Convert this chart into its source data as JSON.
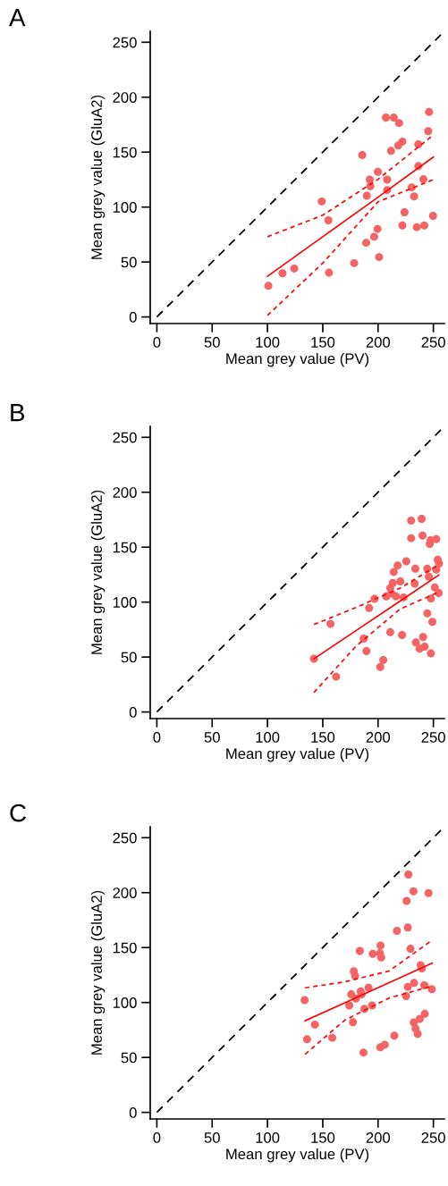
{
  "chart_data": [
    {
      "type": "scatter",
      "title": "A",
      "xlabel": "Mean grey value (PV)",
      "ylabel": "Mean grey value (GluA2)",
      "xlim": [
        -6,
        260
      ],
      "ylim": [
        -6,
        260
      ],
      "xticks": [
        0,
        50,
        100,
        150,
        200,
        250
      ],
      "yticks": [
        0,
        50,
        100,
        150,
        200,
        250
      ],
      "grid": false,
      "legend": false,
      "marker": "circle",
      "series": [
        {
          "type": "line",
          "color": "#000000",
          "line_style": "dashed",
          "marker": "none",
          "x": [
            0,
            260
          ],
          "values": [
            0,
            260
          ]
        },
        {
          "color": "#f46464",
          "x": [
            100.8,
            113.6,
            124.2,
            149.1,
            155.1,
            155.6,
            178.4,
            185.7,
            189.2,
            189.8,
            192.5,
            193.0,
            196.5,
            199.5,
            199.8,
            200.9,
            207.1,
            208.2,
            208.2,
            211.7,
            214.2,
            218.2,
            219.0,
            222.0,
            222.0,
            223.9,
            230.4,
            232.6,
            235.0,
            236.4,
            236.4,
            241.0,
            241.8,
            245.3,
            246.1,
            249.7
          ],
          "values": [
            28.3,
            39.8,
            44.1,
            105.1,
            88.0,
            40.3,
            49.0,
            147.3,
            67.5,
            110.3,
            125.0,
            119.0,
            73.0,
            80.1,
            132.1,
            54.5,
            181.4,
            125.0,
            115.5,
            151.1,
            181.4,
            156.0,
            176.5,
            159.6,
            83.3,
            95.3,
            117.9,
            109.7,
            81.7,
            157.1,
            137.3,
            125.3,
            83.3,
            169.1,
            186.5,
            92.0
          ]
        },
        {
          "type": "line",
          "color": "#ff0000",
          "line_style": "solid",
          "marker": "none",
          "x": [
            100,
            150,
            200,
            250
          ],
          "values": [
            37,
            73,
            109,
            145.5
          ]
        },
        {
          "type": "line",
          "color": "#ff0000",
          "line_style": "dotted",
          "marker": "none",
          "x": [
            100,
            150,
            200,
            250
          ],
          "values": [
            73,
            92.6,
            125.3,
            165.6
          ]
        },
        {
          "type": "line",
          "color": "#ff0000",
          "line_style": "dotted",
          "marker": "none",
          "x": [
            100,
            150,
            200,
            250
          ],
          "values": [
            1.4,
            49,
            104.8,
            125
          ]
        }
      ]
    },
    {
      "type": "scatter",
      "title": "B",
      "xlabel": "Mean grey value (PV)",
      "ylabel": "Mean grey value (GluA2)",
      "xlim": [
        -6,
        260
      ],
      "ylim": [
        -6,
        260
      ],
      "xticks": [
        0,
        50,
        100,
        150,
        200,
        250
      ],
      "yticks": [
        0,
        50,
        100,
        150,
        200,
        250
      ],
      "grid": false,
      "legend": false,
      "marker": "circle",
      "series": [
        {
          "type": "line",
          "color": "#000000",
          "line_style": "dashed",
          "marker": "none",
          "x": [
            0,
            260
          ],
          "values": [
            0,
            260
          ]
        },
        {
          "color": "#f46464",
          "x": [
            142.0,
            157.0,
            162.1,
            187.0,
            189.5,
            191.9,
            196.8,
            202.0,
            204.7,
            207.4,
            211.0,
            211.0,
            212.0,
            213.3,
            214.2,
            216.1,
            217.7,
            220.1,
            221.7,
            223.1,
            225.5,
            229.9,
            229.9,
            233.1,
            233.7,
            234.2,
            237.5,
            239.4,
            240.2,
            240.7,
            242.1,
            244.5,
            244.5,
            245.9,
            246.7,
            247.5,
            247.8,
            247.8,
            249.1,
            251.3,
            252.6,
            252.6,
            254.0,
            255.1,
            254.8
          ],
          "values": [
            48.4,
            80.2,
            32.1,
            66.8,
            55.4,
            94.6,
            103.0,
            41.0,
            47.3,
            105.2,
            72.6,
            112.8,
            107.9,
            117.4,
            127.4,
            105.2,
            133.4,
            118.8,
            70.1,
            104.3,
            137.2,
            174.2,
            158.2,
            116.8,
            130.4,
            63.3,
            57.6,
            175.8,
            160.6,
            68.2,
            59.5,
            89.7,
            130.4,
            123.1,
            153.0,
            156.3,
            103.3,
            53.3,
            82.1,
            113.3,
            157.3,
            129.6,
            138.6,
            135.1,
            108.2
          ]
        },
        {
          "type": "line",
          "color": "#ff0000",
          "line_style": "solid",
          "marker": "none",
          "x": [
            142,
            180,
            220,
            255
          ],
          "values": [
            48.4,
            74,
            101,
            124.7
          ]
        },
        {
          "type": "line",
          "color": "#ff0000",
          "line_style": "dotted",
          "marker": "none",
          "x": [
            142,
            180,
            220,
            255
          ],
          "values": [
            79.6,
            95.1,
            112.8,
            134
          ]
        },
        {
          "type": "line",
          "color": "#ff0000",
          "line_style": "dotted",
          "marker": "none",
          "x": [
            142,
            180,
            220,
            255
          ],
          "values": [
            17.7,
            59.8,
            93.8,
            109.2
          ]
        }
      ]
    },
    {
      "type": "scatter",
      "title": "C",
      "xlabel": "Mean grey value (PV)",
      "ylabel": "Mean grey value (GluA2)",
      "xlim": [
        -6,
        260
      ],
      "ylim": [
        -6,
        260
      ],
      "xticks": [
        0,
        50,
        100,
        150,
        200,
        250
      ],
      "yticks": [
        0,
        50,
        100,
        150,
        200,
        250
      ],
      "grid": false,
      "legend": false,
      "marker": "circle",
      "series": [
        {
          "type": "line",
          "color": "#000000",
          "line_style": "dashed",
          "marker": "none",
          "x": [
            0,
            260
          ],
          "values": [
            0,
            260
          ]
        },
        {
          "color": "#f46464",
          "x": [
            133.6,
            135.8,
            142.9,
            158.6,
            174.0,
            175.7,
            177.3,
            178.1,
            179.2,
            180.0,
            183.5,
            184.3,
            185.1,
            186.8,
            187.6,
            191.4,
            194.6,
            195.2,
            201.7,
            202.2,
            202.8,
            202.0,
            206.0,
            214.7,
            217.1,
            225.3,
            225.8,
            226.9,
            226.9,
            227.4,
            229.3,
            232.0,
            232.3,
            232.6,
            233.9,
            235.8,
            237.7,
            238.5,
            239.6,
            241.8,
            242.3,
            245.6,
            248.6
          ],
          "values": [
            102.2,
            66.5,
            79.9,
            67.9,
            97.3,
            107.4,
            82.1,
            128.4,
            124.3,
            103.6,
            146.9,
            110.1,
            107.4,
            54.5,
            94.3,
            113.4,
            97.3,
            144.2,
            144.8,
            151.9,
            141.0,
            59.2,
            61.6,
            69.8,
            165.2,
            105.8,
            192.5,
            114.2,
            168.2,
            216.5,
            148.9,
            201.2,
            81.8,
            117.8,
            76.3,
            71.4,
            85.1,
            133.9,
            131.1,
            115.6,
            89.7,
            199.6,
            112.1
          ]
        },
        {
          "type": "line",
          "color": "#ff0000",
          "line_style": "solid",
          "marker": "none",
          "x": [
            134,
            170,
            210,
            249
          ],
          "values": [
            83.4,
            99.8,
            118.1,
            135.9
          ]
        },
        {
          "type": "line",
          "color": "#ff0000",
          "line_style": "dotted",
          "marker": "none",
          "x": [
            134,
            170,
            210,
            249
          ],
          "values": [
            113.4,
            118.8,
            128.7,
            156.8
          ]
        },
        {
          "type": "line",
          "color": "#ff0000",
          "line_style": "dotted",
          "marker": "none",
          "x": [
            134,
            170,
            210,
            249
          ],
          "values": [
            52.9,
            84,
            104.1,
            115
          ]
        }
      ]
    }
  ]
}
